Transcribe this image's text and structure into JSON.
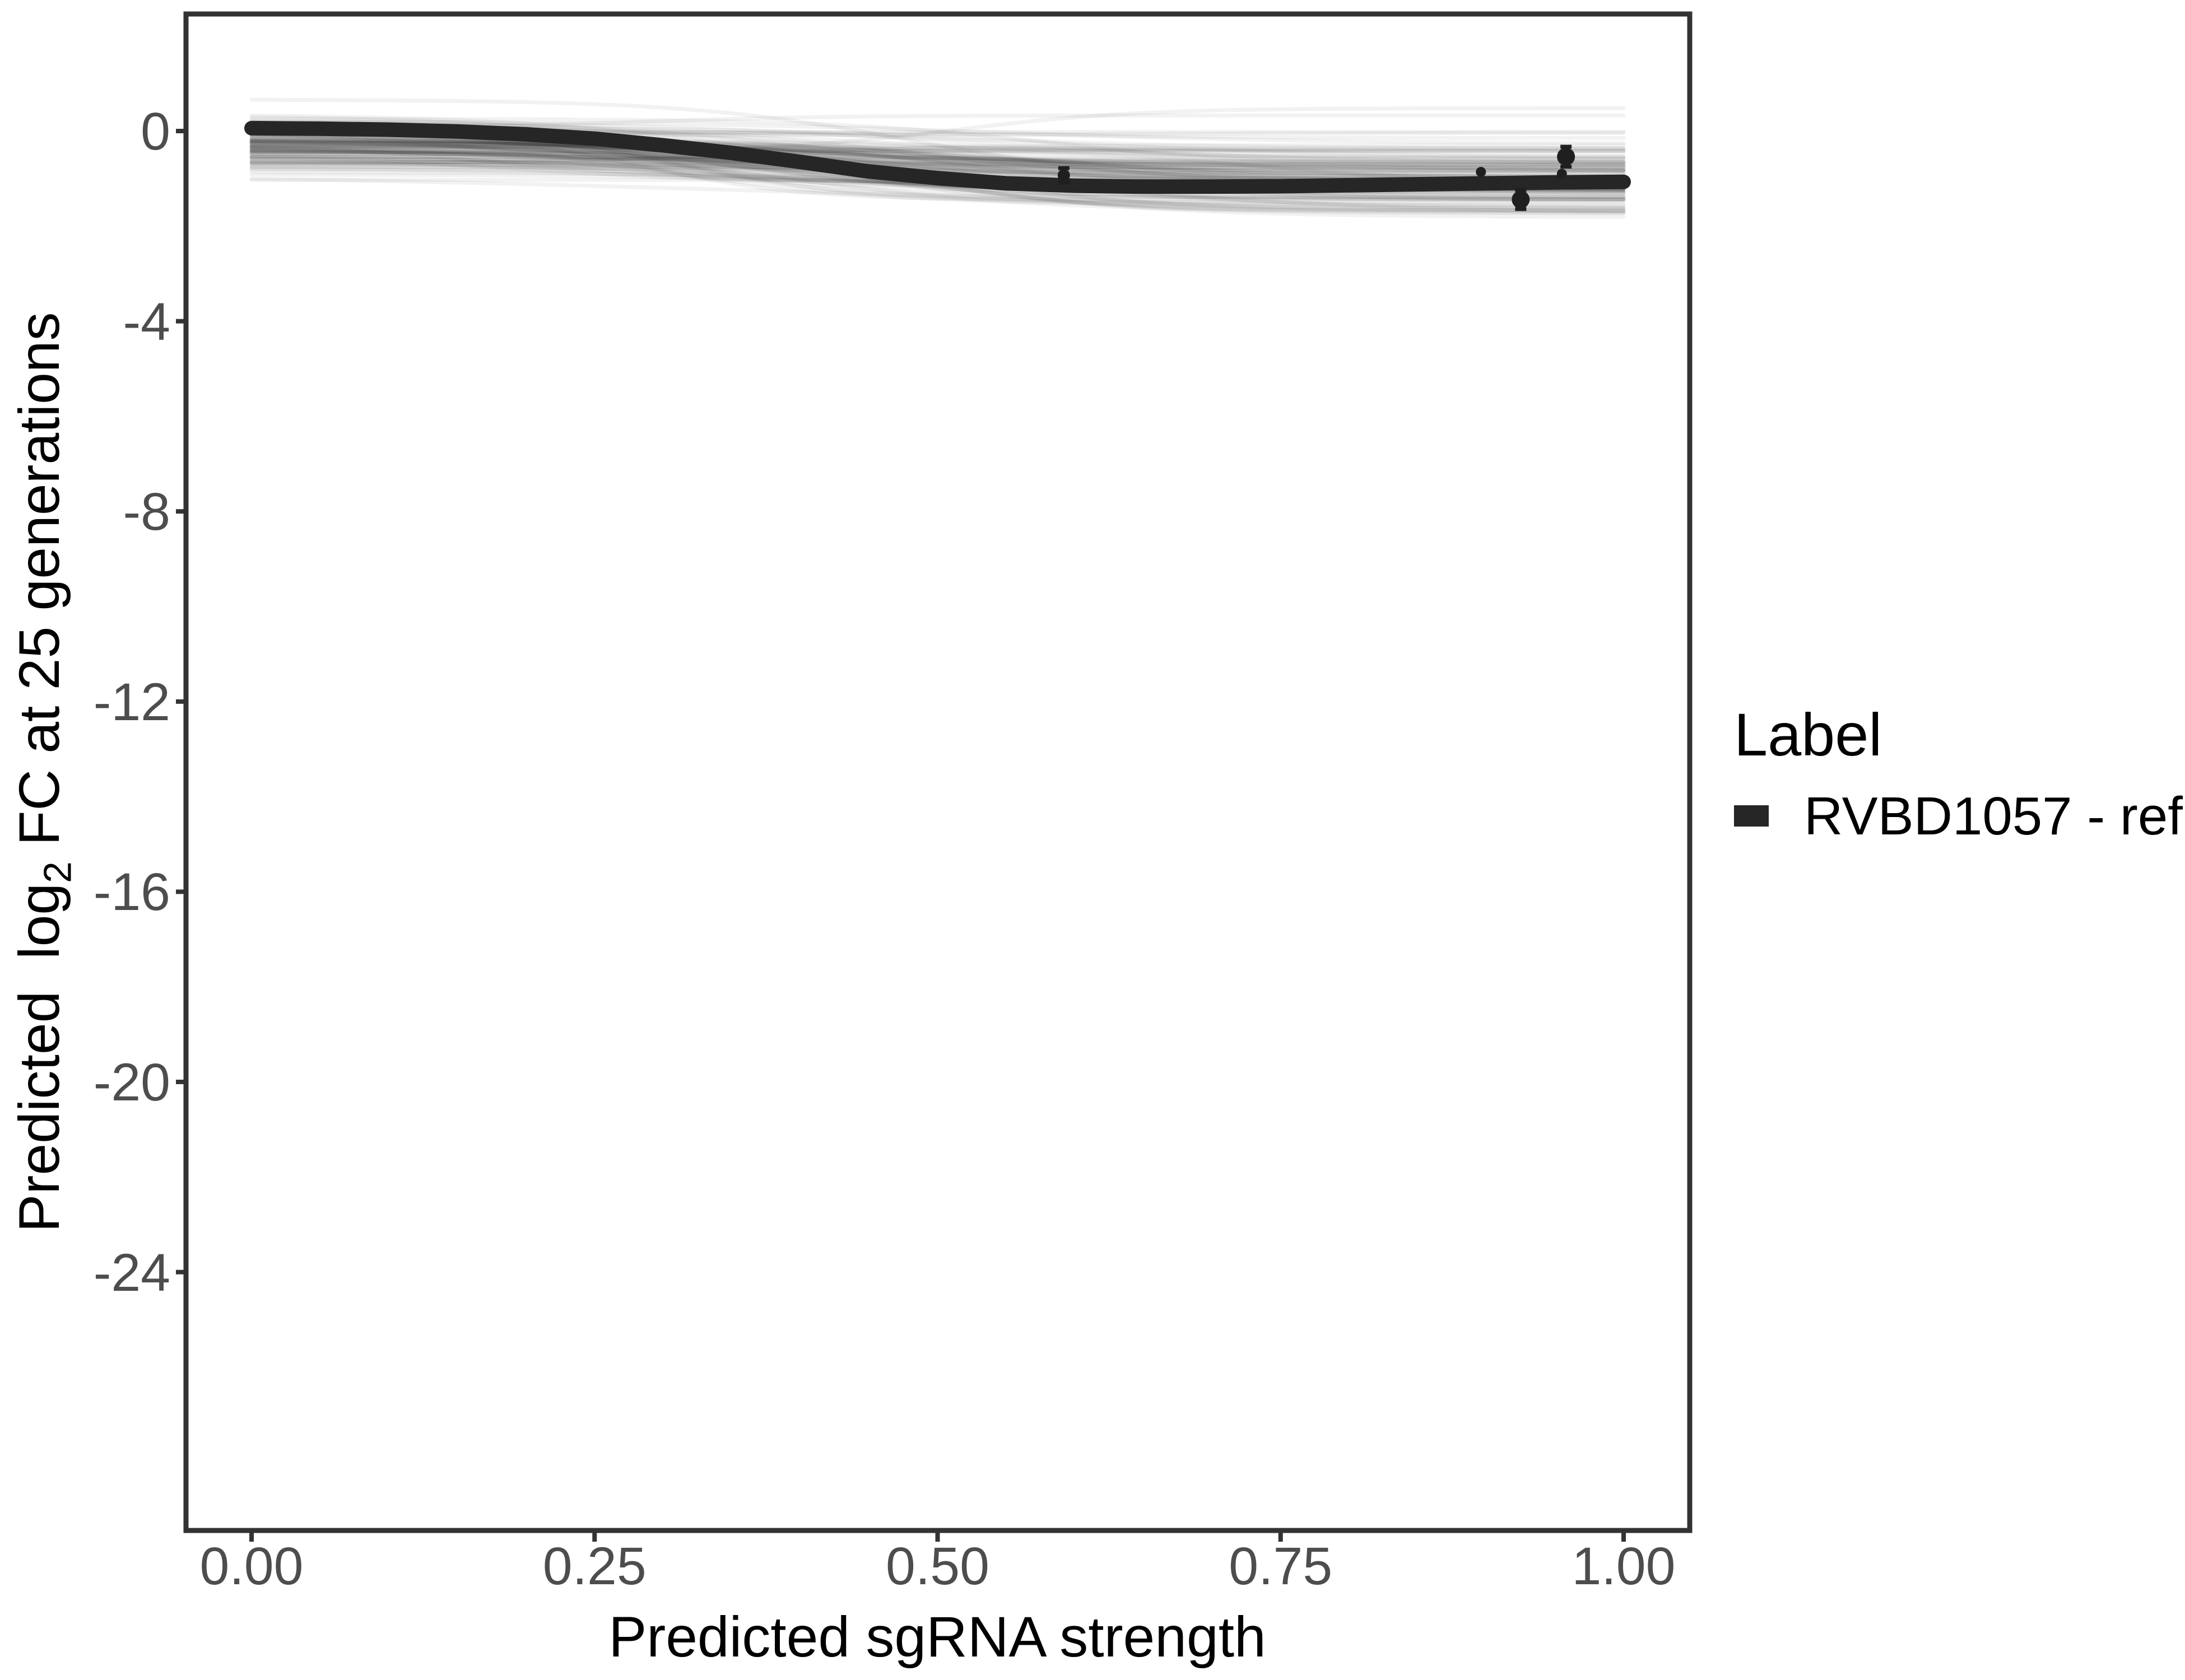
{
  "page": {
    "background": "#ffffff"
  },
  "chart_data": {
    "type": "line",
    "title": "",
    "xlabel": "Predicted sgRNA strength",
    "ylabel": "Predicted log₂ FC at 25 generations",
    "ylabel_parts": {
      "pre": "Predicted  log",
      "sub": "2",
      "post": " FC at 25 generations"
    },
    "x_axis": {
      "range": [
        -0.047,
        1.047
      ],
      "ticks": [
        {
          "label": "0.00",
          "value": 0.0
        },
        {
          "label": "0.25",
          "value": 0.25
        },
        {
          "label": "0.50",
          "value": 0.5
        },
        {
          "label": "0.75",
          "value": 0.75
        },
        {
          "label": "1.00",
          "value": 1.0
        }
      ]
    },
    "y_axis": {
      "range": [
        -29.4,
        2.46
      ],
      "ticks": [
        {
          "label": "0",
          "value": 0
        },
        {
          "label": "-4",
          "value": -4
        },
        {
          "label": "-8",
          "value": -8
        },
        {
          "label": "-12",
          "value": -12
        },
        {
          "label": "-16",
          "value": -16
        },
        {
          "label": "-20",
          "value": -20
        },
        {
          "label": "-24",
          "value": -24
        }
      ]
    },
    "grid": false,
    "legend": {
      "title": "Label",
      "position": "right",
      "entries": [
        {
          "label": "RVBD1057 - ref",
          "color": "#262626"
        }
      ]
    },
    "main_curve": {
      "name": "RVBD1057 - ref",
      "color": "#262626",
      "stroke_width": 26,
      "points": [
        [
          0.0,
          0.06
        ],
        [
          0.05,
          0.05
        ],
        [
          0.1,
          0.03
        ],
        [
          0.15,
          -0.01
        ],
        [
          0.2,
          -0.07
        ],
        [
          0.25,
          -0.16
        ],
        [
          0.3,
          -0.3
        ],
        [
          0.35,
          -0.46
        ],
        [
          0.4,
          -0.65
        ],
        [
          0.45,
          -0.85
        ],
        [
          0.5,
          -0.99
        ],
        [
          0.55,
          -1.1
        ],
        [
          0.6,
          -1.15
        ],
        [
          0.65,
          -1.17
        ],
        [
          0.7,
          -1.17
        ],
        [
          0.75,
          -1.16
        ],
        [
          0.8,
          -1.14
        ],
        [
          0.85,
          -1.12
        ],
        [
          0.9,
          -1.1
        ],
        [
          0.95,
          -1.08
        ],
        [
          1.0,
          -1.07
        ]
      ]
    },
    "posterior_samples": {
      "description": "translucent posterior-draw sigmoid spaghetti band",
      "count": 115,
      "color": "#000000",
      "opacity": 0.05,
      "stroke_width": 7,
      "seed": 11,
      "left_level_mean": -0.35,
      "left_level_sd": 0.25,
      "right_level_mean": -1.05,
      "right_level_sd": 0.42,
      "midpoint_mean": 0.44,
      "midpoint_sd": 0.1,
      "steepness_mean": 11,
      "steepness_sd": 3,
      "x_range": [
        0.0,
        1.0
      ]
    },
    "observed_points": [
      {
        "x": 0.592,
        "y": -0.93,
        "yerr": 0.15,
        "radius": 11
      },
      {
        "x": 0.896,
        "y": -0.86,
        "yerr": 0.09,
        "radius": 9
      },
      {
        "x": 0.925,
        "y": -1.44,
        "yerr": 0.2,
        "radius": 16
      },
      {
        "x": 0.955,
        "y": -0.9,
        "yerr": 0.09,
        "radius": 9
      },
      {
        "x": 0.958,
        "y": -0.54,
        "yerr": 0.21,
        "radius": 16
      }
    ],
    "colors": {
      "curve": "#262626",
      "points": "#1f1f1f",
      "panel_border": "#333333",
      "tick_mark": "#333333",
      "tick_label": "#4d4d4d",
      "axis_title": "#000000"
    }
  }
}
